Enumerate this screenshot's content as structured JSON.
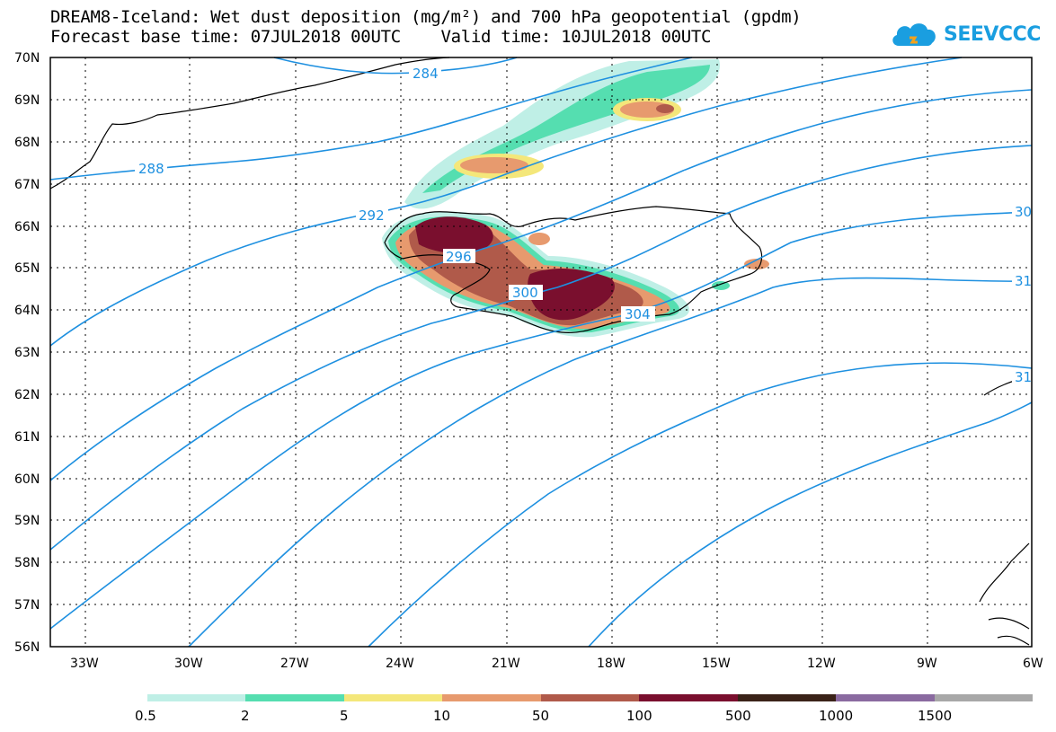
{
  "header": {
    "title": "DREAM8-Iceland: Wet dust deposition (mg/m²) and 700 hPa geopotential (gpdm)",
    "forecast_base": "Forecast base time: 07JUL2018 00UTC",
    "valid": "Valid time: 10JUL2018 00UTC"
  },
  "logo": {
    "text": "SEEVCCC",
    "icon": "cloud-logo-icon",
    "color": "#1a9ee0"
  },
  "map": {
    "lat_labels": [
      "70N",
      "69N",
      "68N",
      "67N",
      "66N",
      "65N",
      "64N",
      "63N",
      "62N",
      "61N",
      "60N",
      "59N",
      "58N",
      "57N",
      "56N"
    ],
    "lon_labels": [
      "33W",
      "30W",
      "27W",
      "24W",
      "21W",
      "18W",
      "15W",
      "12W",
      "9W",
      "6W"
    ],
    "contour_labels": [
      "284",
      "288",
      "292",
      "296",
      "300",
      "304",
      "30",
      "31",
      "31"
    ],
    "contour_color": "#1e90e0",
    "gridlines": true
  },
  "colorbar": {
    "labels": [
      "0.5",
      "2",
      "5",
      "10",
      "50",
      "100",
      "500",
      "1000",
      "1500"
    ],
    "colors": [
      "#bfefe6",
      "#55deb0",
      "#f4e77a",
      "#e79a6e",
      "#b05a4a",
      "#7a0f2e",
      "#3a2218",
      "#8a6aa0",
      "#a8a8a8"
    ]
  }
}
